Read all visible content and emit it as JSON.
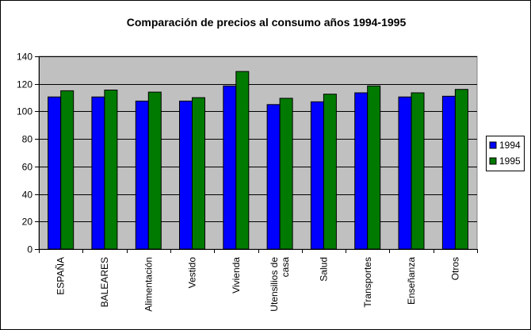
{
  "chart_data": {
    "type": "bar",
    "title": "Comparación de precios al consumo años 1994-1995",
    "xlabel": "",
    "ylabel": "",
    "categories": [
      "ESPAÑA",
      "BALEARES",
      "Alimentación",
      "Vestido",
      "Vivienda",
      "Utensilios de casa",
      "Salud",
      "Transportes",
      "Enseñanza",
      "Otros"
    ],
    "series": [
      {
        "name": "1994",
        "color": "#0000ff",
        "values": [
          110.5,
          110.5,
          107.5,
          107.5,
          118.5,
          105,
          107,
          113.5,
          110.5,
          111
        ]
      },
      {
        "name": "1995",
        "color": "#007a00",
        "values": [
          115,
          115.5,
          114,
          110,
          129,
          109.5,
          112.5,
          118.5,
          113.5,
          116
        ]
      }
    ],
    "ylim": [
      0,
      140
    ],
    "yticks": [
      0,
      20,
      40,
      60,
      80,
      100,
      120,
      140
    ],
    "grid": true,
    "plot_background": "#c0c0c0",
    "legend_position": "right"
  }
}
